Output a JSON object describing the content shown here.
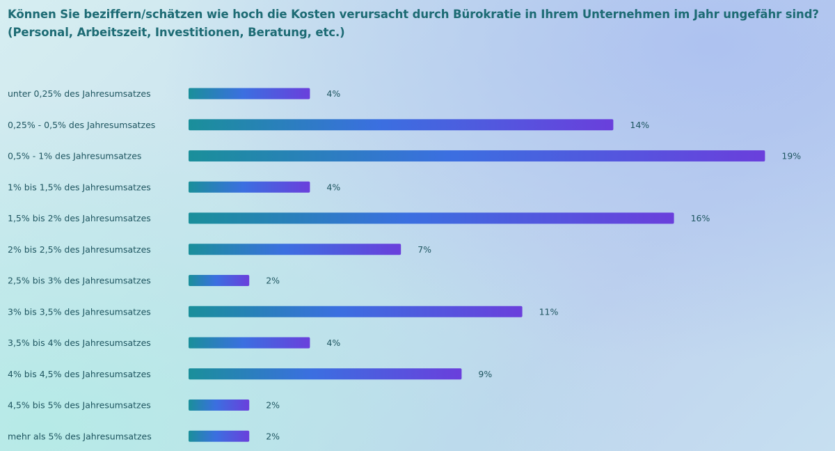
{
  "chart_data": {
    "type": "bar",
    "orientation": "horizontal",
    "title": "Können Sie beziffern/schätzen wie hoch die Kosten verursacht durch Bürokratie in Ihrem Unternehmen im Jahr ungefähr sind? (Personal, Arbeitszeit, Investitionen, Beratung, etc.)",
    "categories": [
      "unter 0,25% des Jahresumsatzes",
      "0,25% - 0,5% des Jahresumsatzes",
      "0,5% - 1% des Jahresumsatzes",
      "1% bis 1,5% des Jahresumsatzes",
      "1,5% bis 2% des Jahresumsatzes",
      "2% bis 2,5% des Jahresumsatzes",
      "2,5% bis 3% des Jahresumsatzes",
      "3% bis 3,5% des Jahresumsatzes",
      "3,5% bis 4% des Jahresumsatzes",
      "4% bis 4,5% des Jahresumsatzes",
      "4,5% bis 5% des Jahresumsatzes",
      "mehr als 5% des Jahresumsatzes"
    ],
    "values": [
      4,
      14,
      19,
      4,
      16,
      7,
      2,
      11,
      4,
      9,
      2,
      2
    ],
    "value_labels": [
      "4%",
      "14%",
      "19%",
      "4%",
      "16%",
      "7%",
      "2%",
      "11%",
      "4%",
      "9%",
      "2%",
      "2%"
    ],
    "unit": "%",
    "xlim": [
      0,
      19
    ],
    "grid": false,
    "colors": {
      "bar_start": "#1a8f9a",
      "bar_mid": "#3b6fe0",
      "bar_end": "#6a3fdc",
      "title": "#1d6b74",
      "labels": "#1e5560"
    }
  }
}
